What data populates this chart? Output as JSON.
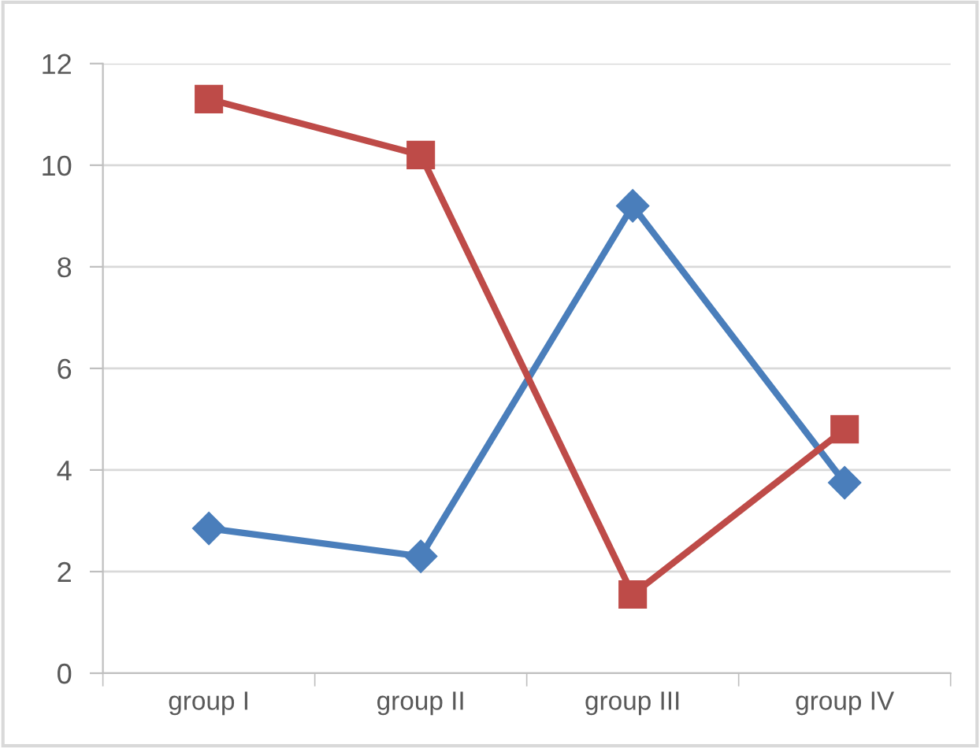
{
  "chart_data": {
    "type": "line",
    "categories": [
      "group I",
      "group II",
      "group III",
      "group IV"
    ],
    "series": [
      {
        "color": "#4a7ebb",
        "marker": "diamond",
        "values": [
          2.85,
          2.3,
          9.2,
          3.75
        ]
      },
      {
        "color": "#be4b48",
        "marker": "square",
        "values": [
          11.3,
          10.2,
          1.55,
          4.8
        ]
      }
    ],
    "ylim": [
      0,
      12
    ],
    "yticks": [
      0,
      2,
      4,
      6,
      8,
      10,
      12
    ],
    "grid": "y",
    "legend": false,
    "line_style": "solid"
  }
}
